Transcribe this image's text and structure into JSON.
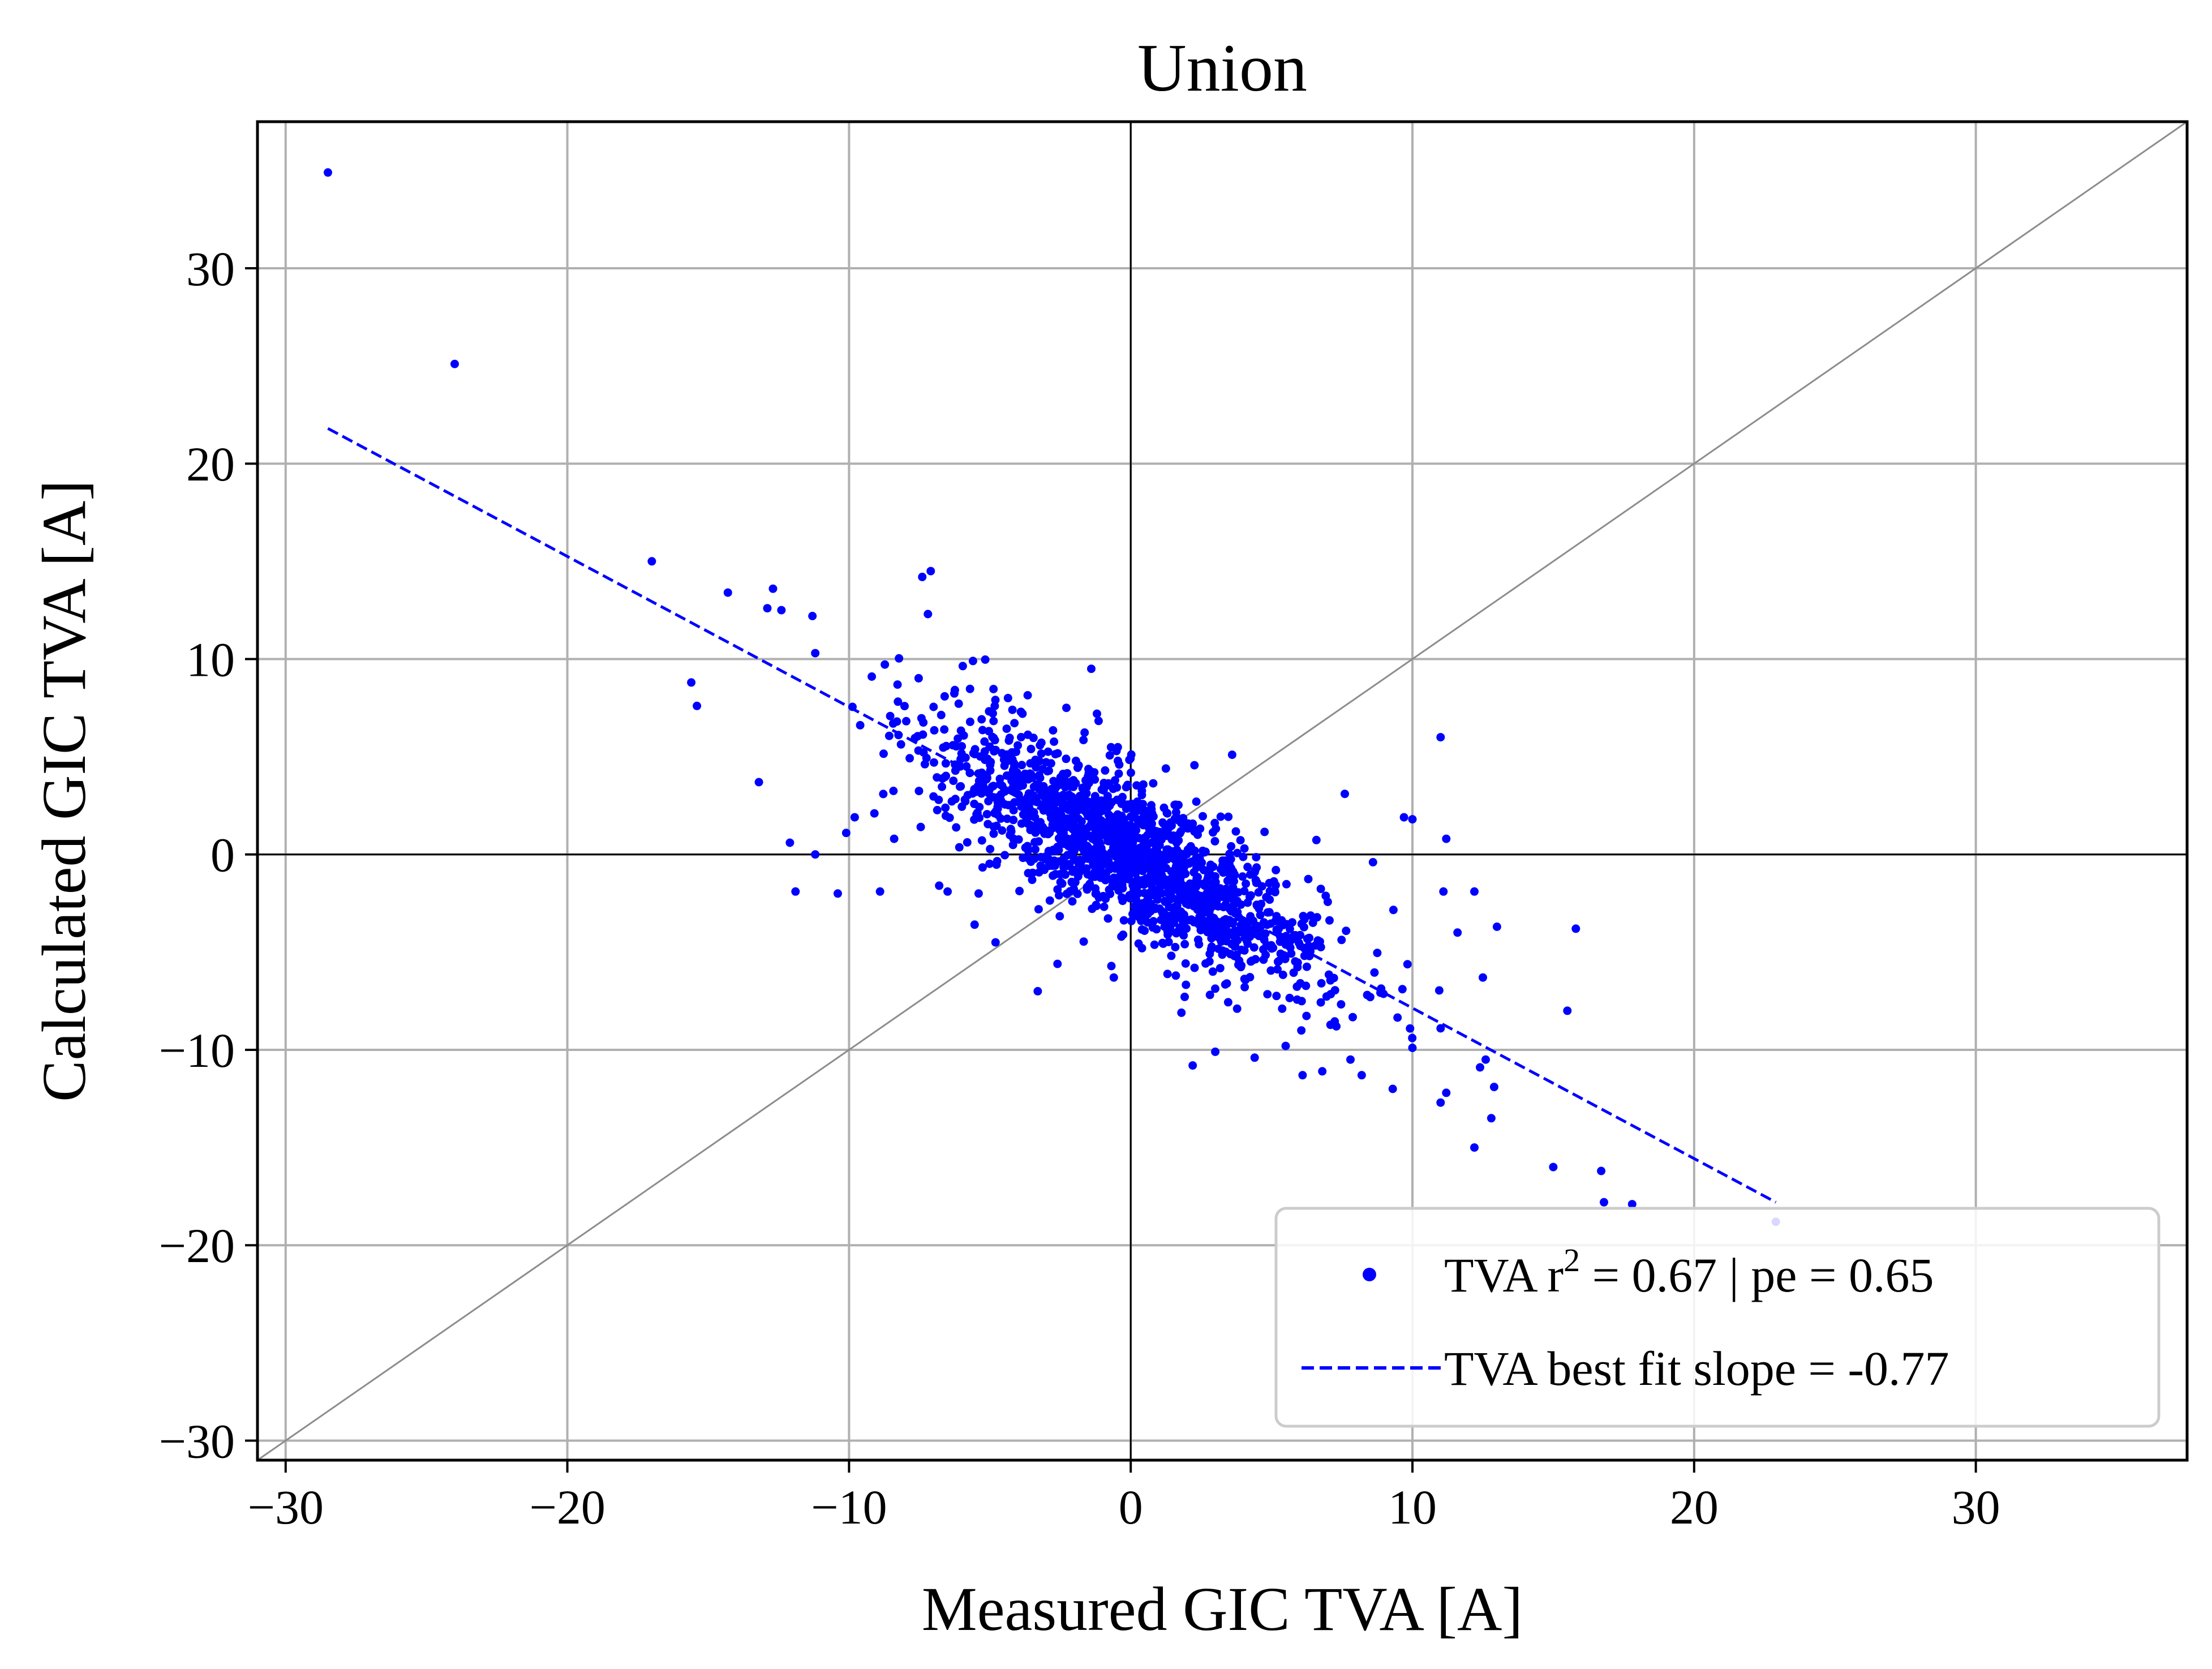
{
  "chart_data": {
    "type": "scatter",
    "title": "Union",
    "xlabel": "Measured GIC TVA [A]",
    "ylabel": "Calculated GIC TVA [A]",
    "xlim": [
      -31,
      37.5
    ],
    "ylim": [
      -31,
      37.5
    ],
    "xticks": [
      -30,
      -20,
      -10,
      0,
      10,
      20,
      30
    ],
    "yticks": [
      -30,
      -20,
      -10,
      0,
      10,
      20,
      30
    ],
    "tick_labels": [
      "−30",
      "−20",
      "−10",
      "0",
      "10",
      "20",
      "30"
    ],
    "grid": true,
    "legend_position": "lower-right",
    "colors": {
      "series": "#0000ff",
      "identity": "#8c8c8c",
      "zero_lines": "#000000",
      "grid": "#b0b0b0"
    },
    "reference_lines": {
      "identity_line": true,
      "zero_lines": true
    },
    "series": [
      {
        "name": "TVA r² = 0.67 | pe = 0.65",
        "legend_main": "TVA r",
        "legend_sup": "2",
        "legend_rest": " = 0.67 | pe = 0.65",
        "marker": "point",
        "points": [
          [
            -28.5,
            34.9
          ],
          [
            -24.0,
            25.1
          ],
          [
            -17.0,
            15.0
          ],
          [
            -15.6,
            8.8
          ],
          [
            -15.4,
            7.6
          ],
          [
            -14.3,
            13.4
          ],
          [
            -13.2,
            3.7
          ],
          [
            -12.9,
            12.6
          ],
          [
            -12.7,
            13.6
          ],
          [
            -12.4,
            12.5
          ],
          [
            -12.1,
            0.6
          ],
          [
            -11.9,
            -1.9
          ],
          [
            -11.3,
            12.2
          ],
          [
            -11.2,
            0.0
          ],
          [
            -11.2,
            10.3
          ],
          [
            -10.4,
            -2.0
          ],
          [
            -10.1,
            1.1
          ],
          [
            -9.8,
            1.9
          ],
          [
            -9.1,
            2.1
          ],
          [
            -8.9,
            -1.9
          ],
          [
            -8.4,
            0.8
          ],
          [
            -8.3,
            6.8
          ],
          [
            -7.4,
            14.2
          ],
          [
            -7.2,
            12.3
          ],
          [
            -7.1,
            14.5
          ],
          [
            -6.8,
            -1.6
          ],
          [
            -6.5,
            -1.9
          ],
          [
            -5.6,
            9.9
          ],
          [
            -5.4,
            -2.0
          ],
          [
            -4.8,
            -4.5
          ],
          [
            -4.2,
            7.4
          ],
          [
            -3.9,
            7.3
          ],
          [
            -3.5,
            -1.3
          ],
          [
            -3.3,
            -7.0
          ],
          [
            -2.6,
            -5.6
          ],
          [
            -1.4,
            9.5
          ],
          [
            -1.2,
            7.2
          ],
          [
            -0.6,
            -6.3
          ],
          [
            0.4,
            -4.8
          ],
          [
            1.3,
            2.1
          ],
          [
            1.6,
            -6.2
          ],
          [
            1.8,
            -8.1
          ],
          [
            2.2,
            -10.8
          ],
          [
            3.0,
            -10.1
          ],
          [
            3.6,
            5.1
          ],
          [
            4.4,
            -10.4
          ],
          [
            5.5,
            -9.8
          ],
          [
            6.1,
            -11.3
          ],
          [
            6.8,
            -11.1
          ],
          [
            7.3,
            -8.8
          ],
          [
            7.6,
            3.1
          ],
          [
            7.8,
            -10.5
          ],
          [
            8.2,
            -11.3
          ],
          [
            8.5,
            -7.3
          ],
          [
            8.6,
            -0.4
          ],
          [
            9.3,
            -12.0
          ],
          [
            9.7,
            1.9
          ],
          [
            10.0,
            -9.9
          ],
          [
            10.0,
            1.8
          ],
          [
            11.0,
            6.0
          ],
          [
            11.0,
            -12.7
          ],
          [
            11.0,
            -8.9
          ],
          [
            11.1,
            -1.9
          ],
          [
            11.2,
            -12.2
          ],
          [
            11.2,
            0.8
          ],
          [
            11.6,
            -4.0
          ],
          [
            12.2,
            -1.9
          ],
          [
            12.2,
            -15.0
          ],
          [
            12.4,
            -10.9
          ],
          [
            12.5,
            -6.3
          ],
          [
            12.6,
            -10.5
          ],
          [
            12.8,
            -13.5
          ],
          [
            12.9,
            -11.9
          ],
          [
            13.0,
            -3.7
          ],
          [
            15.0,
            -16.0
          ],
          [
            15.5,
            -8.0
          ],
          [
            15.8,
            -3.8
          ],
          [
            16.7,
            -16.2
          ],
          [
            16.8,
            -17.8
          ],
          [
            17.8,
            -17.9
          ],
          [
            22.9,
            -18.8
          ]
        ]
      },
      {
        "name": "TVA best fit slope = -0.77",
        "type": "line",
        "style": "dashed",
        "slope": -0.77,
        "x_range": [
          -28.5,
          22.9
        ],
        "y_at_x_start": 21.8,
        "y_at_x_end": -17.8
      }
    ],
    "dense_cloud": {
      "description_only": false,
      "count": 1650,
      "x_mean": 0.0,
      "x_std": 3.4,
      "slope": -0.77,
      "residual_std": 1.9,
      "x_clip": [
        -11,
        11
      ]
    }
  }
}
